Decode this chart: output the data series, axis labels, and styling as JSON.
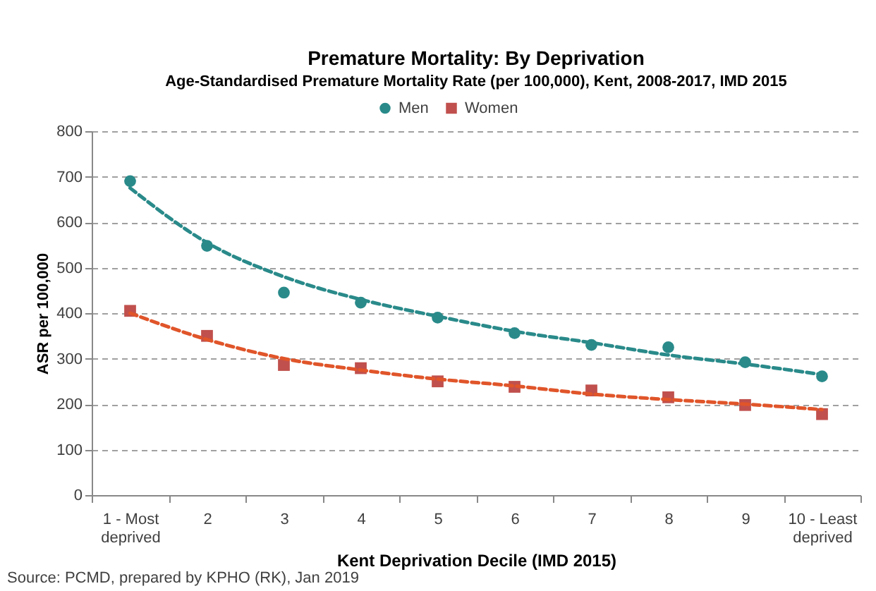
{
  "chart_data": {
    "type": "scatter",
    "title": "Premature Mortality: By Deprivation",
    "subtitle": "Age-Standardised Premature Mortality Rate (per 100,000), Kent, 2008-2017, IMD 2015",
    "xlabel": "Kent Deprivation Decile (IMD 2015)",
    "ylabel": "ASR per 100,000",
    "categories": [
      "1 - Most deprived",
      "2",
      "3",
      "4",
      "5",
      "6",
      "7",
      "8",
      "9",
      "10 - Least deprived"
    ],
    "series": [
      {
        "name": "Men",
        "type": "scatter",
        "marker": "circle",
        "color": "#2a8a8a",
        "values": [
          690,
          548,
          445,
          423,
          390,
          356,
          330,
          325,
          292,
          261
        ]
      },
      {
        "name": "Women",
        "type": "scatter",
        "marker": "square",
        "color": "#c0504d",
        "values": [
          405,
          350,
          286,
          279,
          250,
          238,
          230,
          215,
          198,
          178
        ]
      },
      {
        "type": "line",
        "marker": "none",
        "line_style": "dashed",
        "color": "#2a8a8a",
        "x": [
          "1 - Most deprived",
          "2",
          "3",
          "4",
          "5",
          "6",
          "7",
          "8",
          "9",
          "10 - Least deprived"
        ],
        "values": [
          675,
          555,
          480,
          430,
          393,
          360,
          335,
          308,
          288,
          265
        ]
      },
      {
        "type": "line",
        "marker": "none",
        "line_style": "dashed",
        "color": "#e0552a",
        "x": [
          "1 - Most deprived",
          "2",
          "3",
          "4",
          "5",
          "6",
          "7",
          "8",
          "9",
          "10 - Least deprived"
        ],
        "values": [
          400,
          342,
          300,
          275,
          255,
          240,
          222,
          210,
          200,
          188
        ]
      }
    ],
    "ylim": [
      0,
      800
    ],
    "yticks": [
      0,
      100,
      200,
      300,
      400,
      500,
      600,
      700,
      800
    ],
    "grid": "y",
    "legend": "top",
    "annotations": [
      "Source: PCMD, prepared by KPHO (RK), Jan 2019"
    ]
  }
}
